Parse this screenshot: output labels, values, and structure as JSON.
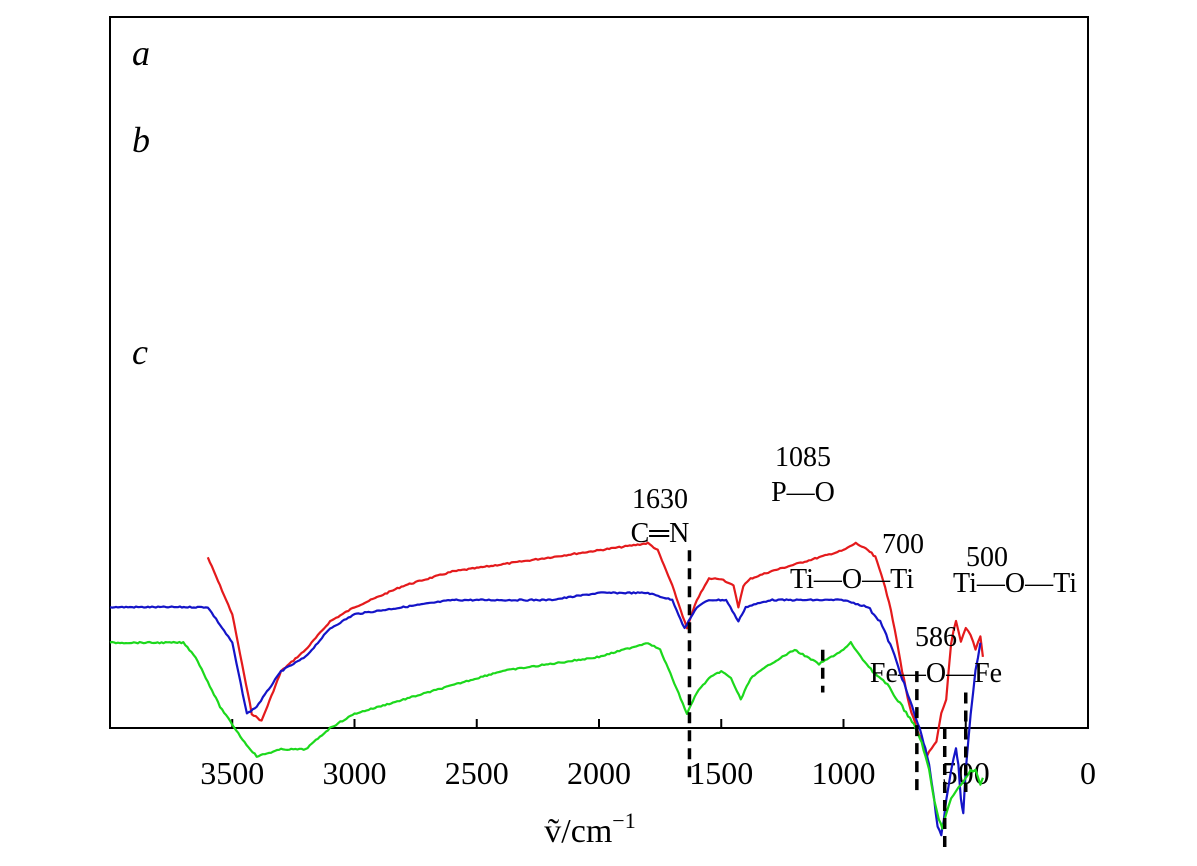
{
  "chart_data": {
    "type": "line",
    "title": "",
    "xlabel": "ṽ/cm⁻¹",
    "xlabel_main": "ṽ/cm",
    "xlabel_exp": "−1",
    "ylabel": "",
    "xlim": [
      4000,
      0
    ],
    "x_reversed": true,
    "grid": false,
    "ticks": [
      {
        "value": 3500,
        "label": "3500"
      },
      {
        "value": 3000,
        "label": "3000"
      },
      {
        "value": 2500,
        "label": "2500"
      },
      {
        "value": 2000,
        "label": "2000"
      },
      {
        "value": 1500,
        "label": "1500"
      },
      {
        "value": 1000,
        "label": "1000"
      },
      {
        "value": 500,
        "label": "500"
      },
      {
        "value": 0,
        "label": "0"
      }
    ],
    "series": [
      {
        "name": "a",
        "color": "#e41a1c",
        "points": [
          [
            3600,
            76
          ],
          [
            3500,
            84
          ],
          [
            3420,
            98
          ],
          [
            3380,
            99
          ],
          [
            3300,
            92
          ],
          [
            3200,
            89
          ],
          [
            3100,
            85
          ],
          [
            3000,
            83
          ],
          [
            2800,
            80
          ],
          [
            2600,
            78
          ],
          [
            2400,
            77
          ],
          [
            2200,
            76
          ],
          [
            2000,
            75
          ],
          [
            1800,
            74
          ],
          [
            1760,
            75
          ],
          [
            1700,
            80
          ],
          [
            1640,
            86
          ],
          [
            1600,
            82
          ],
          [
            1550,
            79
          ],
          [
            1500,
            79
          ],
          [
            1450,
            80
          ],
          [
            1430,
            83
          ],
          [
            1410,
            80
          ],
          [
            1380,
            79
          ],
          [
            1300,
            78
          ],
          [
            1200,
            77
          ],
          [
            1100,
            76
          ],
          [
            1000,
            75
          ],
          [
            950,
            74
          ],
          [
            900,
            75
          ],
          [
            870,
            76
          ],
          [
            830,
            80
          ],
          [
            790,
            86
          ],
          [
            760,
            92
          ],
          [
            730,
            97
          ],
          [
            700,
            100
          ],
          [
            680,
            102
          ],
          [
            660,
            104
          ],
          [
            640,
            103
          ],
          [
            620,
            102
          ],
          [
            600,
            98
          ],
          [
            580,
            96
          ],
          [
            560,
            88
          ],
          [
            540,
            85
          ],
          [
            520,
            88
          ],
          [
            500,
            86
          ],
          [
            480,
            87
          ],
          [
            460,
            89
          ],
          [
            440,
            87
          ],
          [
            430,
            90
          ]
        ]
      },
      {
        "name": "b",
        "color": "#1414c8",
        "points": [
          [
            4000,
            83
          ],
          [
            3600,
            83
          ],
          [
            3500,
            88
          ],
          [
            3440,
            98
          ],
          [
            3400,
            97
          ],
          [
            3300,
            92
          ],
          [
            3200,
            90
          ],
          [
            3100,
            86
          ],
          [
            3000,
            84
          ],
          [
            2800,
            83
          ],
          [
            2600,
            82
          ],
          [
            2400,
            82
          ],
          [
            2200,
            82
          ],
          [
            2000,
            81
          ],
          [
            1800,
            81
          ],
          [
            1700,
            82
          ],
          [
            1650,
            86
          ],
          [
            1600,
            83
          ],
          [
            1550,
            82
          ],
          [
            1480,
            82
          ],
          [
            1430,
            85
          ],
          [
            1400,
            83
          ],
          [
            1300,
            82
          ],
          [
            1200,
            82
          ],
          [
            1100,
            82
          ],
          [
            1000,
            82
          ],
          [
            900,
            83
          ],
          [
            850,
            85
          ],
          [
            800,
            89
          ],
          [
            760,
            93
          ],
          [
            720,
            97
          ],
          [
            680,
            101
          ],
          [
            650,
            105
          ],
          [
            630,
            110
          ],
          [
            615,
            114
          ],
          [
            600,
            115
          ],
          [
            590,
            113
          ],
          [
            580,
            110
          ],
          [
            560,
            106
          ],
          [
            540,
            103
          ],
          [
            530,
            105
          ],
          [
            520,
            110
          ],
          [
            510,
            112
          ],
          [
            500,
            106
          ],
          [
            480,
            98
          ],
          [
            460,
            92
          ],
          [
            440,
            88
          ]
        ]
      },
      {
        "name": "c",
        "color": "#1cd81c",
        "points": [
          [
            4000,
            88
          ],
          [
            3700,
            88
          ],
          [
            3650,
            90
          ],
          [
            3550,
            97
          ],
          [
            3450,
            102
          ],
          [
            3400,
            104
          ],
          [
            3300,
            103
          ],
          [
            3200,
            103
          ],
          [
            3100,
            100
          ],
          [
            3000,
            98
          ],
          [
            2800,
            96
          ],
          [
            2600,
            94
          ],
          [
            2400,
            92
          ],
          [
            2200,
            91
          ],
          [
            2000,
            90
          ],
          [
            1800,
            88
          ],
          [
            1750,
            89
          ],
          [
            1700,
            93
          ],
          [
            1640,
            98
          ],
          [
            1600,
            95
          ],
          [
            1550,
            93
          ],
          [
            1500,
            92
          ],
          [
            1460,
            93
          ],
          [
            1420,
            96
          ],
          [
            1380,
            93
          ],
          [
            1300,
            91
          ],
          [
            1200,
            89
          ],
          [
            1100,
            91
          ],
          [
            1050,
            90
          ],
          [
            1000,
            89
          ],
          [
            970,
            88
          ],
          [
            930,
            90
          ],
          [
            880,
            92
          ],
          [
            820,
            94
          ],
          [
            760,
            97
          ],
          [
            720,
            99
          ],
          [
            680,
            102
          ],
          [
            650,
            106
          ],
          [
            630,
            110
          ],
          [
            610,
            113
          ],
          [
            595,
            114
          ],
          [
            580,
            112
          ],
          [
            560,
            110
          ],
          [
            540,
            109
          ],
          [
            520,
            108
          ],
          [
            500,
            107
          ],
          [
            480,
            106
          ],
          [
            460,
            106
          ],
          [
            440,
            108
          ],
          [
            430,
            107
          ]
        ]
      }
    ],
    "annotations": [
      {
        "wavenumber": 1630,
        "line_from": 75,
        "line_to": 107,
        "lines": [
          "1630",
          "C═N"
        ]
      },
      {
        "wavenumber": 1085,
        "line_from": 89,
        "line_to": 95,
        "lines": [
          "1085",
          "P—O"
        ]
      },
      {
        "wavenumber": 700,
        "line_from": 92,
        "line_to": 109,
        "lines": [
          "700",
          "Ti—O—Ti"
        ]
      },
      {
        "wavenumber": 586,
        "line_from": 100,
        "line_to": 117,
        "lines": [
          "586",
          "Fe—O—Fe"
        ]
      },
      {
        "wavenumber": 500,
        "line_from": 95,
        "line_to": 109,
        "lines": [
          "500",
          "Ti—O—Ti"
        ]
      }
    ]
  }
}
